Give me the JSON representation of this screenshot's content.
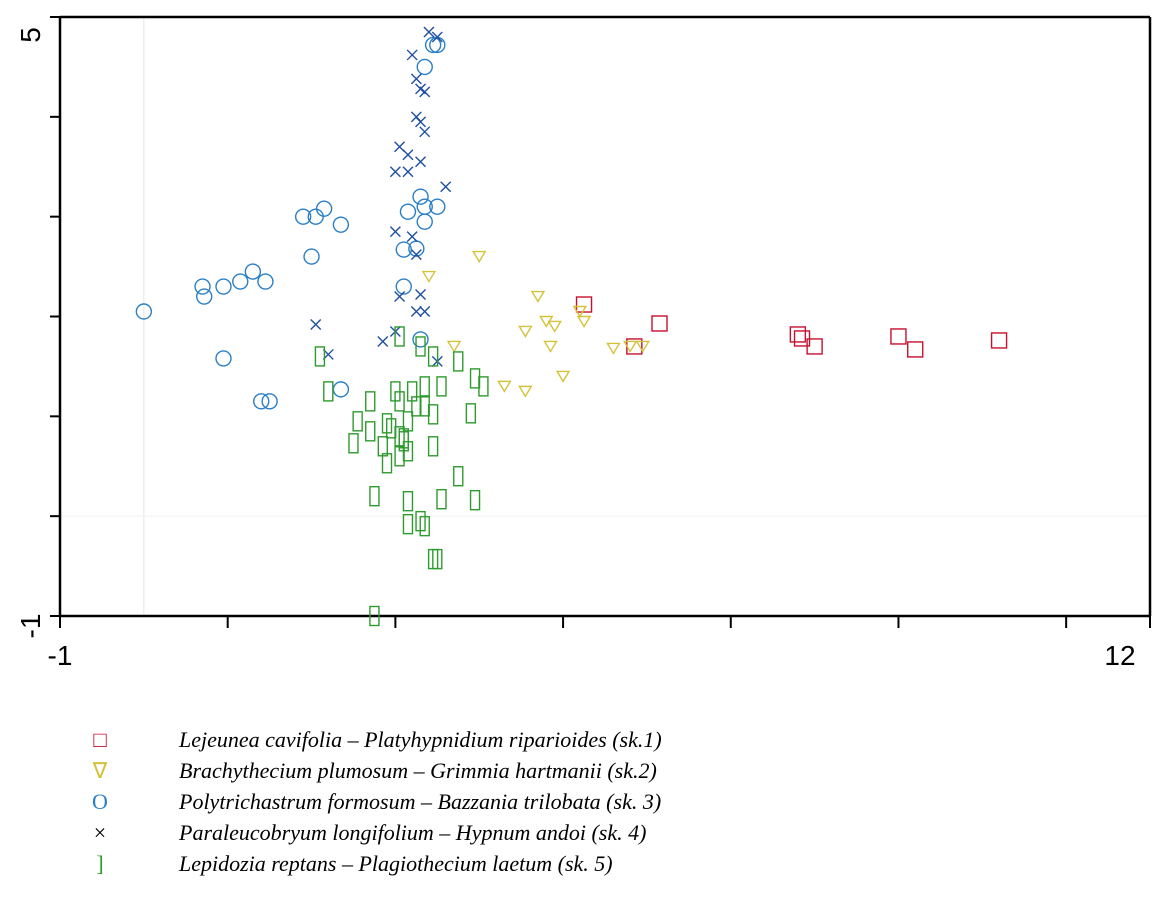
{
  "chart_data": {
    "type": "scatter",
    "xlim": [
      -1,
      12
    ],
    "ylim": [
      -1,
      5
    ],
    "x_tick_labels": [
      "-1",
      "12"
    ],
    "y_tick_labels": [
      "-1",
      "5"
    ],
    "x_minor_ticks": [
      1,
      3,
      5,
      7,
      9,
      11
    ],
    "y_minor_ticks": [
      0,
      1,
      2,
      3,
      4
    ],
    "grid": false,
    "legend_position": "bottom",
    "series": [
      {
        "name": "Lejeunea cavifolia – Platyhypnidium riparioides (sk.1)",
        "legend_symbol": "□",
        "marker": "square",
        "color": "#c8102e",
        "points": [
          [
            5.25,
            2.12
          ],
          [
            5.85,
            1.7
          ],
          [
            6.15,
            1.93
          ],
          [
            7.8,
            1.82
          ],
          [
            7.85,
            1.78
          ],
          [
            8.0,
            1.7
          ],
          [
            9.0,
            1.8
          ],
          [
            9.2,
            1.67
          ],
          [
            10.2,
            1.76
          ]
        ]
      },
      {
        "name": "Brachythecium plumosum – Grimmia hartmanii (sk.2)",
        "legend_symbol": "∇",
        "marker": "triangle-down",
        "color": "#d4c23a",
        "points": [
          [
            3.4,
            2.4
          ],
          [
            4.0,
            2.6
          ],
          [
            3.7,
            1.7
          ],
          [
            4.7,
            2.2
          ],
          [
            4.55,
            1.85
          ],
          [
            4.8,
            1.95
          ],
          [
            4.9,
            1.9
          ],
          [
            4.85,
            1.7
          ],
          [
            5.2,
            2.05
          ],
          [
            5.25,
            1.95
          ],
          [
            5.6,
            1.68
          ],
          [
            5.8,
            1.7
          ],
          [
            5.95,
            1.7
          ],
          [
            4.3,
            1.3
          ],
          [
            4.55,
            1.25
          ],
          [
            5.0,
            1.4
          ]
        ]
      },
      {
        "name": "Polytrichastrum formosum – Bazzania trilobata (sk. 3)",
        "legend_symbol": "O",
        "marker": "circle",
        "color": "#2a7fc7",
        "points": [
          [
            0.0,
            2.05
          ],
          [
            0.7,
            2.3
          ],
          [
            0.72,
            2.2
          ],
          [
            0.95,
            2.3
          ],
          [
            1.15,
            2.35
          ],
          [
            1.3,
            2.45
          ],
          [
            1.45,
            2.35
          ],
          [
            1.9,
            3.0
          ],
          [
            2.05,
            3.0
          ],
          [
            2.15,
            3.08
          ],
          [
            2.35,
            2.92
          ],
          [
            2.0,
            2.6
          ],
          [
            0.95,
            1.58
          ],
          [
            1.4,
            1.15
          ],
          [
            1.5,
            1.15
          ],
          [
            2.35,
            1.27
          ],
          [
            3.1,
            2.67
          ],
          [
            3.25,
            2.68
          ],
          [
            3.15,
            3.05
          ],
          [
            3.3,
            3.2
          ],
          [
            3.35,
            3.1
          ],
          [
            3.35,
            2.95
          ],
          [
            3.5,
            3.1
          ],
          [
            3.35,
            4.5
          ],
          [
            3.45,
            4.72
          ],
          [
            3.5,
            4.72
          ],
          [
            3.1,
            2.3
          ],
          [
            3.3,
            1.77
          ]
        ]
      },
      {
        "name": "Paraleucobryum longifolium – Hypnum andoi (sk. 4)",
        "legend_symbol": "×",
        "marker": "x",
        "color": "#1f4fa0",
        "points": [
          [
            3.2,
            4.62
          ],
          [
            3.4,
            4.85
          ],
          [
            3.5,
            4.8
          ],
          [
            3.25,
            4.38
          ],
          [
            3.3,
            4.28
          ],
          [
            3.35,
            4.25
          ],
          [
            3.25,
            4.0
          ],
          [
            3.3,
            3.95
          ],
          [
            3.35,
            3.85
          ],
          [
            3.05,
            3.7
          ],
          [
            3.15,
            3.62
          ],
          [
            3.0,
            3.45
          ],
          [
            3.15,
            3.45
          ],
          [
            3.3,
            3.55
          ],
          [
            3.0,
            2.85
          ],
          [
            3.2,
            2.8
          ],
          [
            3.25,
            2.62
          ],
          [
            3.6,
            3.3
          ],
          [
            3.05,
            2.2
          ],
          [
            3.25,
            2.05
          ],
          [
            3.35,
            2.05
          ],
          [
            3.0,
            1.85
          ],
          [
            2.85,
            1.75
          ],
          [
            3.5,
            1.55
          ],
          [
            2.05,
            1.92
          ],
          [
            2.2,
            1.62
          ],
          [
            3.3,
            2.22
          ]
        ]
      },
      {
        "name": "Lepidozia reptans – Plagiothecium laetum (sk. 5)",
        "legend_symbol": "]",
        "marker": "rect-tall",
        "color": "#2e9b2e",
        "points": [
          [
            2.1,
            1.6
          ],
          [
            3.05,
            1.8
          ],
          [
            3.3,
            1.7
          ],
          [
            3.45,
            1.6
          ],
          [
            3.0,
            1.25
          ],
          [
            3.05,
            1.15
          ],
          [
            3.25,
            1.1
          ],
          [
            3.2,
            1.25
          ],
          [
            3.35,
            1.3
          ],
          [
            3.55,
            1.3
          ],
          [
            3.75,
            1.55
          ],
          [
            3.95,
            1.38
          ],
          [
            4.05,
            1.3
          ],
          [
            3.9,
            1.03
          ],
          [
            2.2,
            1.25
          ],
          [
            2.55,
            0.95
          ],
          [
            2.7,
            0.85
          ],
          [
            2.9,
            0.93
          ],
          [
            2.95,
            0.88
          ],
          [
            3.15,
            0.95
          ],
          [
            3.05,
            0.8
          ],
          [
            3.1,
            0.78
          ],
          [
            3.45,
            1.02
          ],
          [
            3.35,
            1.1
          ],
          [
            2.7,
            1.15
          ],
          [
            2.85,
            0.7
          ],
          [
            3.05,
            0.6
          ],
          [
            3.1,
            0.75
          ],
          [
            3.45,
            0.7
          ],
          [
            3.15,
            0.65
          ],
          [
            2.9,
            0.53
          ],
          [
            2.5,
            0.73
          ],
          [
            3.75,
            0.4
          ],
          [
            2.75,
            0.2
          ],
          [
            3.15,
            0.15
          ],
          [
            3.55,
            0.17
          ],
          [
            3.95,
            0.16
          ],
          [
            3.15,
            -0.08
          ],
          [
            3.3,
            -0.05
          ],
          [
            3.35,
            -0.1
          ],
          [
            3.45,
            -0.43
          ],
          [
            3.5,
            -0.43
          ],
          [
            2.75,
            -1.0
          ]
        ]
      }
    ]
  }
}
